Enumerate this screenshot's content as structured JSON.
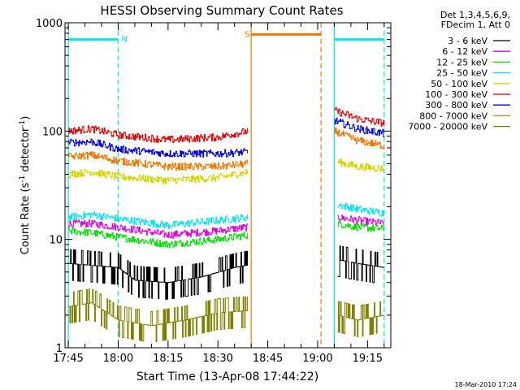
{
  "chart_data": {
    "type": "line",
    "title": "HESSI Observing Summary Count Rates",
    "xlabel": "Start Time (13-Apr-08 17:44:22)",
    "ylabel_main": "Count Rate (s",
    "ylabel_sup1": "-1",
    "ylabel_mid": " detector",
    "ylabel_sup2": "-1",
    "ylabel_end": ")",
    "y_scale": "log",
    "ylim": [
      1,
      1000
    ],
    "xlim": [
      "17:44",
      "19:22"
    ],
    "x_ticks": [
      "17:45",
      "18:00",
      "18:15",
      "18:30",
      "18:45",
      "19:00",
      "19:15"
    ],
    "y_ticks": [
      {
        "value": 1,
        "label": "1"
      },
      {
        "value": 10,
        "label": "10"
      },
      {
        "value": 100,
        "label": "100"
      },
      {
        "value": 1000,
        "label": "1000"
      }
    ],
    "legend_header": [
      "Det 1,3,4,5,6,9,",
      "FDecim 1, Att 0"
    ],
    "legend_position": "right",
    "footer_date": "18-Mar-2010 17:24",
    "flags": [
      {
        "label": "N",
        "start": "17:45",
        "end": "18:00",
        "value": 700,
        "color": "#00e5ee"
      },
      {
        "label": "S",
        "start": "18:40",
        "end": "19:01",
        "value": 780,
        "color": "#f07800"
      },
      {
        "label": "",
        "start": "19:05",
        "end": "19:20",
        "value": 700,
        "color": "#00e5ee"
      }
    ],
    "vertical_markers": [
      {
        "time": "17:45",
        "color": "#00e5ee",
        "style": "solid"
      },
      {
        "time": "18:00",
        "color": "#00e5ee",
        "style": "dashed"
      },
      {
        "time": "18:40",
        "color": "#f07800",
        "style": "solid"
      },
      {
        "time": "19:01",
        "color": "#f07800",
        "style": "dashed"
      },
      {
        "time": "19:05",
        "color": "#00e5ee",
        "style": "solid"
      },
      {
        "time": "19:20",
        "color": "#00e5ee",
        "style": "dashed"
      }
    ],
    "series": [
      {
        "name": "3 - 6 keV",
        "color": "#000000",
        "points1": [
          [
            "17:45",
            6.0
          ],
          [
            "18:00",
            5.5
          ],
          [
            "18:05",
            4.2
          ],
          [
            "18:15",
            4.0
          ],
          [
            "18:25",
            4.5
          ],
          [
            "18:35",
            5.5
          ],
          [
            "18:39",
            5.8
          ]
        ],
        "points2": [
          [
            "19:06",
            6.5
          ],
          [
            "19:12",
            6.0
          ],
          [
            "19:20",
            5.5
          ]
        ]
      },
      {
        "name": "6 - 12 keV",
        "color": "#e000e0",
        "points1": [
          [
            "17:45",
            14
          ],
          [
            "17:52",
            14
          ],
          [
            "18:00",
            13
          ],
          [
            "18:15",
            11
          ],
          [
            "18:30",
            12
          ],
          [
            "18:39",
            13
          ]
        ],
        "points2": [
          [
            "19:06",
            16
          ],
          [
            "19:12",
            15
          ],
          [
            "19:20",
            14
          ]
        ]
      },
      {
        "name": "12 - 25 keV",
        "color": "#00e000",
        "points1": [
          [
            "17:45",
            12
          ],
          [
            "17:52",
            11.5
          ],
          [
            "18:00",
            10.5
          ],
          [
            "18:15",
            9.0
          ],
          [
            "18:30",
            10
          ],
          [
            "18:39",
            11
          ]
        ],
        "points2": [
          [
            "19:06",
            14
          ],
          [
            "19:12",
            13
          ],
          [
            "19:20",
            12.5
          ]
        ]
      },
      {
        "name": "25 - 50 keV",
        "color": "#00e5ee",
        "points1": [
          [
            "17:45",
            16
          ],
          [
            "17:52",
            17
          ],
          [
            "18:00",
            15.5
          ],
          [
            "18:15",
            13.5
          ],
          [
            "18:30",
            15
          ],
          [
            "18:39",
            16
          ]
        ],
        "points2": [
          [
            "19:06",
            21
          ],
          [
            "19:12",
            19
          ],
          [
            "19:20",
            17.5
          ]
        ]
      },
      {
        "name": "50 - 100 keV",
        "color": "#d4d400",
        "points1": [
          [
            "17:45",
            40
          ],
          [
            "17:52",
            42
          ],
          [
            "18:00",
            38
          ],
          [
            "18:15",
            35
          ],
          [
            "18:30",
            37
          ],
          [
            "18:39",
            42
          ]
        ],
        "points2": [
          [
            "19:06",
            52
          ],
          [
            "19:12",
            47
          ],
          [
            "19:20",
            45
          ]
        ]
      },
      {
        "name": "100 - 300 keV",
        "color": "#e00000",
        "points1": [
          [
            "17:45",
            100
          ],
          [
            "17:52",
            105
          ],
          [
            "18:00",
            92
          ],
          [
            "18:15",
            83
          ],
          [
            "18:30",
            88
          ],
          [
            "18:39",
            100
          ]
        ],
        "points2": [
          [
            "19:05",
            155
          ],
          [
            "19:12",
            130
          ],
          [
            "19:20",
            118
          ]
        ]
      },
      {
        "name": "300 - 800 keV",
        "color": "#0000e0",
        "points1": [
          [
            "17:45",
            78
          ],
          [
            "17:52",
            80
          ],
          [
            "18:00",
            68
          ],
          [
            "18:15",
            62
          ],
          [
            "18:30",
            62
          ],
          [
            "18:39",
            64
          ]
        ],
        "points2": [
          [
            "19:05",
            125
          ],
          [
            "19:12",
            105
          ],
          [
            "19:20",
            95
          ]
        ]
      },
      {
        "name": "800 - 7000 keV",
        "color": "#f07800",
        "points1": [
          [
            "17:45",
            58
          ],
          [
            "17:52",
            60
          ],
          [
            "18:00",
            53
          ],
          [
            "18:15",
            47
          ],
          [
            "18:30",
            47
          ],
          [
            "18:39",
            50
          ]
        ],
        "points2": [
          [
            "19:05",
            100
          ],
          [
            "19:12",
            82
          ],
          [
            "19:20",
            73
          ]
        ]
      },
      {
        "name": "7000 - 20000 keV",
        "color": "#808000",
        "points1": [
          [
            "17:45",
            2.4
          ],
          [
            "17:52",
            2.6
          ],
          [
            "18:00",
            1.8
          ],
          [
            "18:10",
            1.6
          ],
          [
            "18:20",
            1.8
          ],
          [
            "18:30",
            2.1
          ],
          [
            "18:39",
            2.2
          ]
        ],
        "points2": [
          [
            "19:06",
            2.0
          ],
          [
            "19:12",
            1.8
          ],
          [
            "19:20",
            2.0
          ]
        ]
      }
    ]
  }
}
